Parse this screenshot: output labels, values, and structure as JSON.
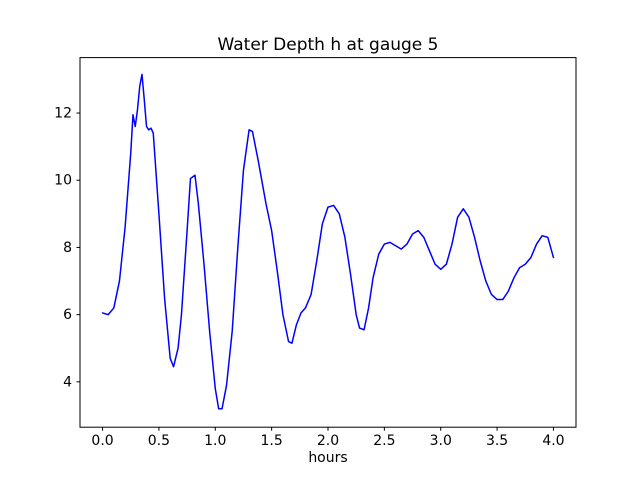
{
  "chart_data": {
    "type": "line",
    "title": "Water Depth h at gauge 5",
    "xlabel": "hours",
    "ylabel": "",
    "xlim": [
      -0.2,
      4.2
    ],
    "ylim": [
      2.65,
      13.65
    ],
    "x_ticks": [
      0.0,
      0.5,
      1.0,
      1.5,
      2.0,
      2.5,
      3.0,
      3.5,
      4.0
    ],
    "x_tick_labels": [
      "0.0",
      "0.5",
      "1.0",
      "1.5",
      "2.0",
      "2.5",
      "3.0",
      "3.5",
      "4.0"
    ],
    "y_ticks": [
      4,
      6,
      8,
      10,
      12
    ],
    "y_tick_labels": [
      "4",
      "6",
      "8",
      "10",
      "12"
    ],
    "grid": false,
    "legend": "none",
    "line_color": "#0000ff",
    "line_width": 1.5,
    "frame_color": "#000000",
    "background_color": "#ffffff",
    "series": [
      {
        "name": "water depth h",
        "x": [
          0.0,
          0.05,
          0.1,
          0.15,
          0.2,
          0.25,
          0.27,
          0.29,
          0.31,
          0.33,
          0.35,
          0.37,
          0.39,
          0.41,
          0.43,
          0.45,
          0.5,
          0.55,
          0.6,
          0.63,
          0.67,
          0.7,
          0.75,
          0.78,
          0.8,
          0.82,
          0.85,
          0.9,
          0.95,
          1.0,
          1.03,
          1.06,
          1.1,
          1.15,
          1.2,
          1.25,
          1.3,
          1.33,
          1.38,
          1.45,
          1.5,
          1.55,
          1.6,
          1.65,
          1.68,
          1.72,
          1.76,
          1.8,
          1.85,
          1.9,
          1.95,
          2.0,
          2.05,
          2.1,
          2.15,
          2.2,
          2.25,
          2.28,
          2.32,
          2.36,
          2.4,
          2.45,
          2.5,
          2.55,
          2.6,
          2.65,
          2.7,
          2.75,
          2.8,
          2.85,
          2.9,
          2.95,
          3.0,
          3.05,
          3.1,
          3.15,
          3.2,
          3.25,
          3.3,
          3.35,
          3.4,
          3.45,
          3.5,
          3.55,
          3.6,
          3.65,
          3.7,
          3.75,
          3.8,
          3.85,
          3.9,
          3.95,
          4.0
        ],
        "y": [
          6.05,
          6.0,
          6.2,
          7.0,
          8.6,
          10.8,
          11.95,
          11.6,
          12.1,
          12.8,
          13.15,
          12.4,
          11.6,
          11.5,
          11.55,
          11.4,
          9.0,
          6.5,
          4.7,
          4.45,
          5.0,
          6.0,
          8.5,
          10.05,
          10.1,
          10.15,
          9.3,
          7.5,
          5.5,
          3.8,
          3.2,
          3.2,
          3.9,
          5.5,
          8.0,
          10.3,
          11.5,
          11.45,
          10.6,
          9.3,
          8.5,
          7.3,
          6.0,
          5.2,
          5.15,
          5.7,
          6.05,
          6.2,
          6.6,
          7.6,
          8.7,
          9.2,
          9.25,
          9.0,
          8.3,
          7.2,
          6.0,
          5.6,
          5.55,
          6.2,
          7.1,
          7.8,
          8.1,
          8.15,
          8.05,
          7.95,
          8.1,
          8.4,
          8.5,
          8.3,
          7.9,
          7.5,
          7.35,
          7.5,
          8.1,
          8.9,
          9.15,
          8.9,
          8.3,
          7.6,
          7.0,
          6.6,
          6.45,
          6.45,
          6.7,
          7.1,
          7.4,
          7.5,
          7.7,
          8.1,
          8.35,
          8.3,
          7.7
        ]
      }
    ]
  }
}
